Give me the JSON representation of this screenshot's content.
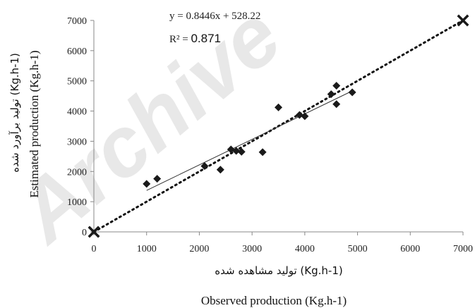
{
  "chart_data": {
    "type": "scatter",
    "xlim": [
      0,
      7000
    ],
    "ylim": [
      0,
      7000
    ],
    "x_ticks": [
      0,
      1000,
      2000,
      3000,
      4000,
      5000,
      6000,
      7000
    ],
    "y_ticks": [
      0,
      1000,
      2000,
      3000,
      4000,
      5000,
      6000,
      7000
    ],
    "x_tick_labels": [
      "0",
      "1000",
      "2000",
      "3000",
      "4000",
      "5000",
      "6000",
      "7000"
    ],
    "y_tick_labels": [
      "0",
      "1000",
      "2000",
      "3000",
      "4000",
      "5000",
      "6000",
      "7000"
    ],
    "xlabel_fa": "تولید مشاهده شده (Kg.h-1)",
    "xlabel_en": "Observed production (Kg.h-1)",
    "ylabel_fa": "تولید برآورد شده (Kg.h-1)",
    "ylabel_en": "Estimated production (Kg.h-1)",
    "grid": false,
    "series": [
      {
        "marker": "diamond",
        "points": [
          {
            "x": 1000,
            "y": 1590
          },
          {
            "x": 1200,
            "y": 1760
          },
          {
            "x": 2100,
            "y": 2180
          },
          {
            "x": 2400,
            "y": 2060
          },
          {
            "x": 2600,
            "y": 2730
          },
          {
            "x": 2700,
            "y": 2680
          },
          {
            "x": 2800,
            "y": 2650
          },
          {
            "x": 3200,
            "y": 2640
          },
          {
            "x": 3500,
            "y": 4120
          },
          {
            "x": 3900,
            "y": 3870
          },
          {
            "x": 4000,
            "y": 3830
          },
          {
            "x": 4500,
            "y": 4560
          },
          {
            "x": 4600,
            "y": 4840
          },
          {
            "x": 4600,
            "y": 4230
          },
          {
            "x": 4900,
            "y": 4620
          }
        ]
      },
      {
        "marker": "x",
        "points": [
          {
            "x": 0,
            "y": 0
          },
          {
            "x": 7000,
            "y": 7000
          }
        ]
      }
    ],
    "trendline": {
      "slope": 0.8446,
      "intercept": 528.22,
      "x_range": [
        1000,
        4900
      ],
      "equation_label": "y = 0.8446x + 528.22",
      "r2_label": "R² = ",
      "r2_value": "0.871"
    },
    "reference_line": {
      "style": "dotted",
      "from": [
        0,
        0
      ],
      "to": [
        7000,
        7000
      ]
    },
    "watermark": "Archive",
    "colors": {
      "marker": "#1a1a1a",
      "line": "#111111",
      "watermark": "#d6d6d6"
    }
  }
}
